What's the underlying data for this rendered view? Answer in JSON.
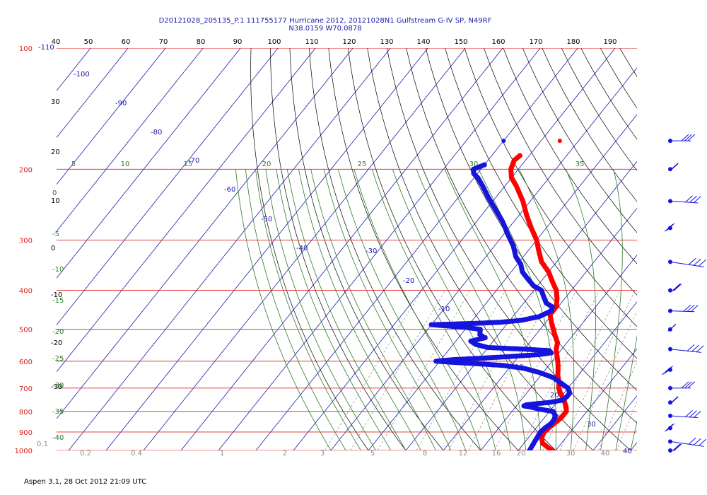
{
  "header": {
    "line1": "D20121028_205135_P.1 111755177 Hurricane 2012, 20121028N1 Gulfstream G-IV SP, N49RF",
    "line2": "N38.0159 W70.0878"
  },
  "footer": {
    "text": "Aspen 3.1, 28 Oct 2012  21:09 UTC"
  },
  "chart_data": {
    "type": "skew-t",
    "pressure_levels": [
      100,
      200,
      300,
      400,
      500,
      600,
      700,
      800,
      900,
      1000
    ],
    "temperature_ticks_top": [
      -110,
      40,
      50,
      60,
      70,
      80,
      90,
      100,
      110,
      120,
      130,
      140,
      150,
      160,
      170,
      180,
      190
    ],
    "isotherm_labels": [
      -100,
      -90,
      -80,
      -70,
      -60,
      -50,
      -40,
      -30,
      -20,
      -10,
      0,
      10,
      20,
      30,
      40
    ],
    "left_temperature_labels": [
      40,
      30,
      20,
      10,
      0,
      -10,
      -20,
      -30
    ],
    "dry_adiabat_labels": [
      5,
      10,
      15,
      20,
      25,
      30,
      35
    ],
    "moist_adiabat_labels": [
      0,
      -5,
      -10,
      -15,
      -20,
      -25,
      -30,
      -35,
      -40
    ],
    "mixing_ratio_labels": [
      "0.1",
      "0.2",
      "0.4",
      "1",
      "2",
      "3",
      "5",
      "8",
      "12",
      "16",
      "20",
      "30",
      "40"
    ],
    "colors": {
      "isobar": "#e02020",
      "isotherm": "#1a1aa8",
      "dry_adiabat": "#000000",
      "moist_adiabat": "#2a7a2a",
      "mixing_ratio": "#8a8a8a",
      "temperature_trace": "#ff0000",
      "dewpoint_trace": "#1515dd",
      "wind_barbs": "#1515dd"
    },
    "series": [
      {
        "name": "temperature",
        "color": "#ff0000",
        "points": [
          {
            "p": 1000,
            "t": 19
          },
          {
            "p": 980,
            "t": 17
          },
          {
            "p": 960,
            "t": 15
          },
          {
            "p": 930,
            "t": 13.5
          },
          {
            "p": 900,
            "t": 13
          },
          {
            "p": 870,
            "t": 13.5
          },
          {
            "p": 850,
            "t": 14
          },
          {
            "p": 830,
            "t": 14.5
          },
          {
            "p": 800,
            "t": 14.5
          },
          {
            "p": 780,
            "t": 13.5
          },
          {
            "p": 750,
            "t": 11.5
          },
          {
            "p": 720,
            "t": 9
          },
          {
            "p": 700,
            "t": 7.5
          },
          {
            "p": 680,
            "t": 6.5
          },
          {
            "p": 650,
            "t": 4.5
          },
          {
            "p": 620,
            "t": 2.8
          },
          {
            "p": 600,
            "t": 1.5
          },
          {
            "p": 580,
            "t": 0
          },
          {
            "p": 560,
            "t": -1.5
          },
          {
            "p": 540,
            "t": -2.5
          },
          {
            "p": 520,
            "t": -4.5
          },
          {
            "p": 500,
            "t": -6.5
          },
          {
            "p": 480,
            "t": -8.5
          },
          {
            "p": 460,
            "t": -10.5
          },
          {
            "p": 440,
            "t": -10.5
          },
          {
            "p": 420,
            "t": -12
          },
          {
            "p": 400,
            "t": -14
          },
          {
            "p": 380,
            "t": -17
          },
          {
            "p": 360,
            "t": -20
          },
          {
            "p": 340,
            "t": -24
          },
          {
            "p": 320,
            "t": -27
          },
          {
            "p": 300,
            "t": -30
          },
          {
            "p": 280,
            "t": -34
          },
          {
            "p": 260,
            "t": -38
          },
          {
            "p": 240,
            "t": -42
          },
          {
            "p": 220,
            "t": -47
          },
          {
            "p": 210,
            "t": -50
          },
          {
            "p": 200,
            "t": -52
          },
          {
            "p": 190,
            "t": -53
          },
          {
            "p": 185,
            "t": -52.5
          }
        ]
      },
      {
        "name": "dewpoint",
        "color": "#1515dd",
        "points": [
          {
            "p": 1000,
            "t": 13
          },
          {
            "p": 980,
            "t": 12.8
          },
          {
            "p": 950,
            "t": 12.5
          },
          {
            "p": 920,
            "t": 12.2
          },
          {
            "p": 900,
            "t": 12
          },
          {
            "p": 880,
            "t": 12.3
          },
          {
            "p": 860,
            "t": 13
          },
          {
            "p": 840,
            "t": 13
          },
          {
            "p": 820,
            "t": 12.5
          },
          {
            "p": 800,
            "t": 11
          },
          {
            "p": 790,
            "t": 7
          },
          {
            "p": 780,
            "t": 4
          },
          {
            "p": 775,
            "t": 2
          },
          {
            "p": 770,
            "t": 2.5
          },
          {
            "p": 765,
            "t": 5
          },
          {
            "p": 760,
            "t": 8
          },
          {
            "p": 750,
            "t": 11
          },
          {
            "p": 735,
            "t": 11.5
          },
          {
            "p": 720,
            "t": 11.5
          },
          {
            "p": 700,
            "t": 10
          },
          {
            "p": 680,
            "t": 7
          },
          {
            "p": 660,
            "t": 4
          },
          {
            "p": 640,
            "t": -1
          },
          {
            "p": 625,
            "t": -6
          },
          {
            "p": 615,
            "t": -12
          },
          {
            "p": 610,
            "t": -18
          },
          {
            "p": 605,
            "t": -25
          },
          {
            "p": 600,
            "t": -31
          },
          {
            "p": 595,
            "t": -27
          },
          {
            "p": 590,
            "t": -20
          },
          {
            "p": 585,
            "t": -13
          },
          {
            "p": 578,
            "t": -5
          },
          {
            "p": 572,
            "t": -2
          },
          {
            "p": 565,
            "t": -3
          },
          {
            "p": 560,
            "t": -10
          },
          {
            "p": 555,
            "t": -20
          },
          {
            "p": 545,
            "t": -24
          },
          {
            "p": 535,
            "t": -26
          },
          {
            "p": 525,
            "t": -23
          },
          {
            "p": 515,
            "t": -25
          },
          {
            "p": 500,
            "t": -26
          },
          {
            "p": 495,
            "t": -30
          },
          {
            "p": 490,
            "t": -36
          },
          {
            "p": 487,
            "t": -40
          },
          {
            "p": 485,
            "t": -34
          },
          {
            "p": 483,
            "t": -28
          },
          {
            "p": 480,
            "t": -22
          },
          {
            "p": 475,
            "t": -17
          },
          {
            "p": 465,
            "t": -13
          },
          {
            "p": 450,
            "t": -11
          },
          {
            "p": 440,
            "t": -11.5
          },
          {
            "p": 430,
            "t": -14
          },
          {
            "p": 415,
            "t": -16
          },
          {
            "p": 400,
            "t": -18
          },
          {
            "p": 390,
            "t": -21
          },
          {
            "p": 375,
            "t": -24
          },
          {
            "p": 360,
            "t": -27
          },
          {
            "p": 345,
            "t": -29
          },
          {
            "p": 330,
            "t": -32
          },
          {
            "p": 310,
            "t": -35
          },
          {
            "p": 290,
            "t": -39
          },
          {
            "p": 270,
            "t": -43
          },
          {
            "p": 250,
            "t": -48
          },
          {
            "p": 235,
            "t": -52
          },
          {
            "p": 220,
            "t": -56
          },
          {
            "p": 210,
            "t": -59
          },
          {
            "p": 205,
            "t": -61
          },
          {
            "p": 200,
            "t": -62
          },
          {
            "p": 195,
            "t": -60
          }
        ]
      },
      {
        "name": "temperature-marker",
        "color": "#ff0000",
        "points": [
          {
            "p": 170,
            "t": -45
          }
        ]
      },
      {
        "name": "dewpoint-marker",
        "color": "#1515dd",
        "points": [
          {
            "p": 170,
            "t": -60
          }
        ]
      }
    ],
    "winds": {
      "pressures": [
        170,
        200,
        240,
        280,
        340,
        400,
        450,
        500,
        560,
        630,
        700,
        760,
        820,
        880,
        950,
        1000
      ]
    }
  }
}
